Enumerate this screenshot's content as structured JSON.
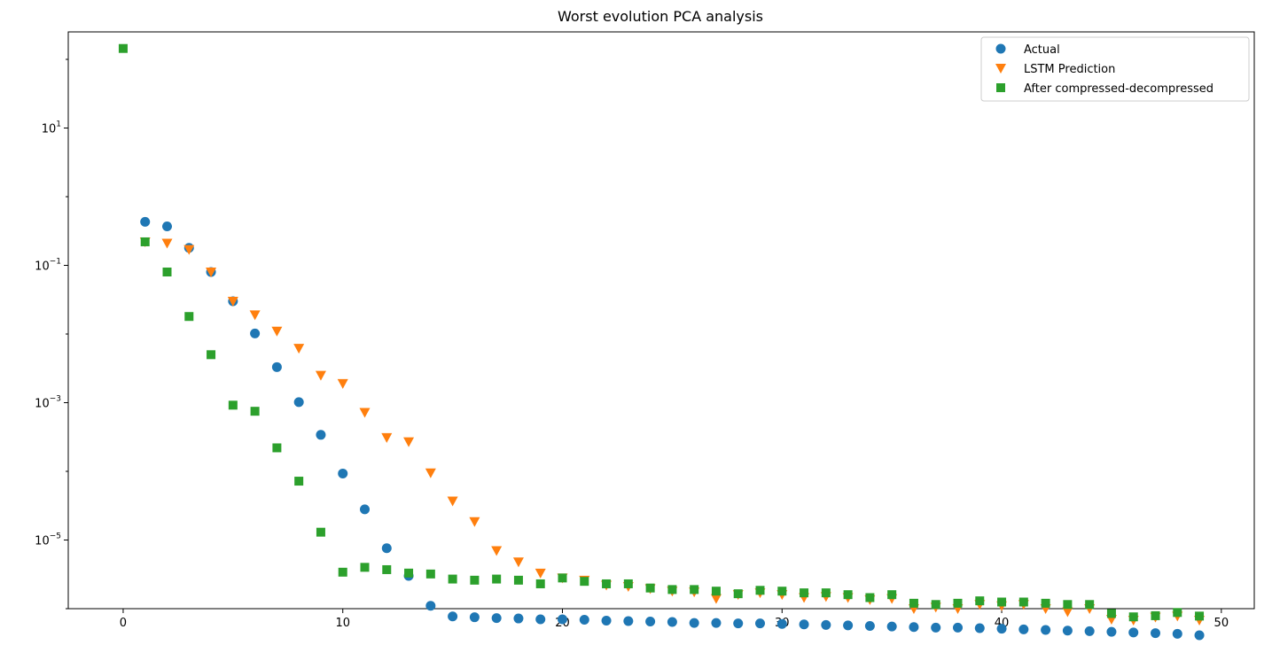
{
  "chart_data": {
    "type": "scatter",
    "title": "Worst evolution PCA analysis",
    "xlabel": "",
    "ylabel": "",
    "xlim": [
      -2.5,
      51.5
    ],
    "ylim_log10": [
      -6.0,
      2.4
    ],
    "yscale": "log",
    "grid": false,
    "legend_position": "top-right",
    "x_ticks": [
      0,
      10,
      20,
      30,
      40,
      50
    ],
    "y_ticks": [
      {
        "exp": 1,
        "base": "10",
        "sup": "1"
      },
      {
        "exp": -1,
        "base": "10",
        "sup": "−1"
      },
      {
        "exp": -3,
        "base": "10",
        "sup": "−3"
      },
      {
        "exp": -5,
        "base": "10",
        "sup": "−5"
      }
    ],
    "series": [
      {
        "name": "Actual",
        "marker": "circle",
        "color": "#1f77b4",
        "x": [
          1,
          2,
          3,
          4,
          5,
          6,
          7,
          8,
          9,
          10,
          11,
          12,
          13,
          14,
          15,
          16,
          17,
          18,
          19,
          20,
          21,
          22,
          23,
          24,
          25,
          26,
          27,
          28,
          29,
          30,
          31,
          32,
          33,
          34,
          35,
          36,
          37,
          38,
          39,
          40,
          41,
          42,
          43,
          44,
          45,
          46,
          47,
          48,
          49
        ],
        "y": [
          0.43,
          0.37,
          0.18,
          0.08,
          0.03,
          0.0102,
          0.0033,
          0.00102,
          0.00034,
          9.3e-05,
          2.8e-05,
          7.6e-06,
          3e-06,
          1.1e-06,
          7.7e-07,
          7.5e-07,
          7.3e-07,
          7.2e-07,
          7e-07,
          7e-07,
          6.9e-07,
          6.7e-07,
          6.6e-07,
          6.5e-07,
          6.4e-07,
          6.2e-07,
          6.2e-07,
          6.1e-07,
          6.1e-07,
          6e-07,
          5.9e-07,
          5.8e-07,
          5.7e-07,
          5.6e-07,
          5.5e-07,
          5.4e-07,
          5.3e-07,
          5.3e-07,
          5.2e-07,
          5.1e-07,
          5e-07,
          4.9e-07,
          4.8e-07,
          4.7e-07,
          4.6e-07,
          4.5e-07,
          4.4e-07,
          4.3e-07,
          4.1e-07
        ]
      },
      {
        "name": "LSTM Prediction",
        "marker": "triangle-down",
        "color": "#ff7f0e",
        "x": [
          1,
          2,
          3,
          4,
          5,
          6,
          7,
          8,
          9,
          10,
          11,
          12,
          13,
          14,
          15,
          16,
          17,
          18,
          19,
          20,
          21,
          22,
          23,
          24,
          25,
          26,
          27,
          28,
          29,
          30,
          31,
          32,
          33,
          34,
          35,
          36,
          37,
          38,
          39,
          40,
          41,
          42,
          43,
          44,
          45,
          46,
          47,
          48,
          49
        ],
        "y": [
          0.22,
          0.21,
          0.17,
          0.08,
          0.03,
          0.019,
          0.011,
          0.0062,
          0.0025,
          0.0019,
          0.00072,
          0.00031,
          0.00027,
          9.5e-05,
          3.7e-05,
          1.85e-05,
          7e-06,
          4.8e-06,
          3.3e-06,
          2.8e-06,
          2.6e-06,
          2.2e-06,
          2.1e-06,
          1.95e-06,
          1.8e-06,
          1.75e-06,
          1.4e-06,
          1.6e-06,
          1.7e-06,
          1.6e-06,
          1.45e-06,
          1.5e-06,
          1.45e-06,
          1.35e-06,
          1.4e-06,
          1e-06,
          1.05e-06,
          1e-06,
          1.15e-06,
          1.1e-06,
          1.15e-06,
          1e-06,
          9e-07,
          1e-06,
          7e-07,
          6.8e-07,
          7.5e-07,
          7.8e-07,
          6.8e-07
        ]
      },
      {
        "name": "After compressed-decompressed",
        "marker": "square",
        "color": "#2ca02c",
        "x": [
          0,
          1,
          2,
          3,
          4,
          5,
          6,
          7,
          8,
          9,
          10,
          11,
          12,
          13,
          14,
          15,
          16,
          17,
          18,
          19,
          20,
          21,
          22,
          23,
          24,
          25,
          26,
          27,
          28,
          29,
          30,
          31,
          32,
          33,
          34,
          35,
          36,
          37,
          38,
          39,
          40,
          41,
          42,
          43,
          44,
          45,
          46,
          47,
          48,
          49
        ],
        "y": [
          144,
          0.22,
          0.08,
          0.018,
          0.005,
          0.00092,
          0.00075,
          0.00022,
          7.2e-05,
          1.3e-05,
          3.4e-06,
          4e-06,
          3.7e-06,
          3.3e-06,
          3.2e-06,
          2.7e-06,
          2.6e-06,
          2.7e-06,
          2.6e-06,
          2.3e-06,
          2.8e-06,
          2.5e-06,
          2.3e-06,
          2.3e-06,
          2e-06,
          1.9e-06,
          1.9e-06,
          1.8e-06,
          1.65e-06,
          1.85e-06,
          1.8e-06,
          1.7e-06,
          1.7e-06,
          1.6e-06,
          1.45e-06,
          1.6e-06,
          1.2e-06,
          1.15e-06,
          1.2e-06,
          1.3e-06,
          1.25e-06,
          1.25e-06,
          1.2e-06,
          1.15e-06,
          1.15e-06,
          8.5e-07,
          7.6e-07,
          7.9e-07,
          8.8e-07,
          7.8e-07
        ]
      }
    ]
  }
}
